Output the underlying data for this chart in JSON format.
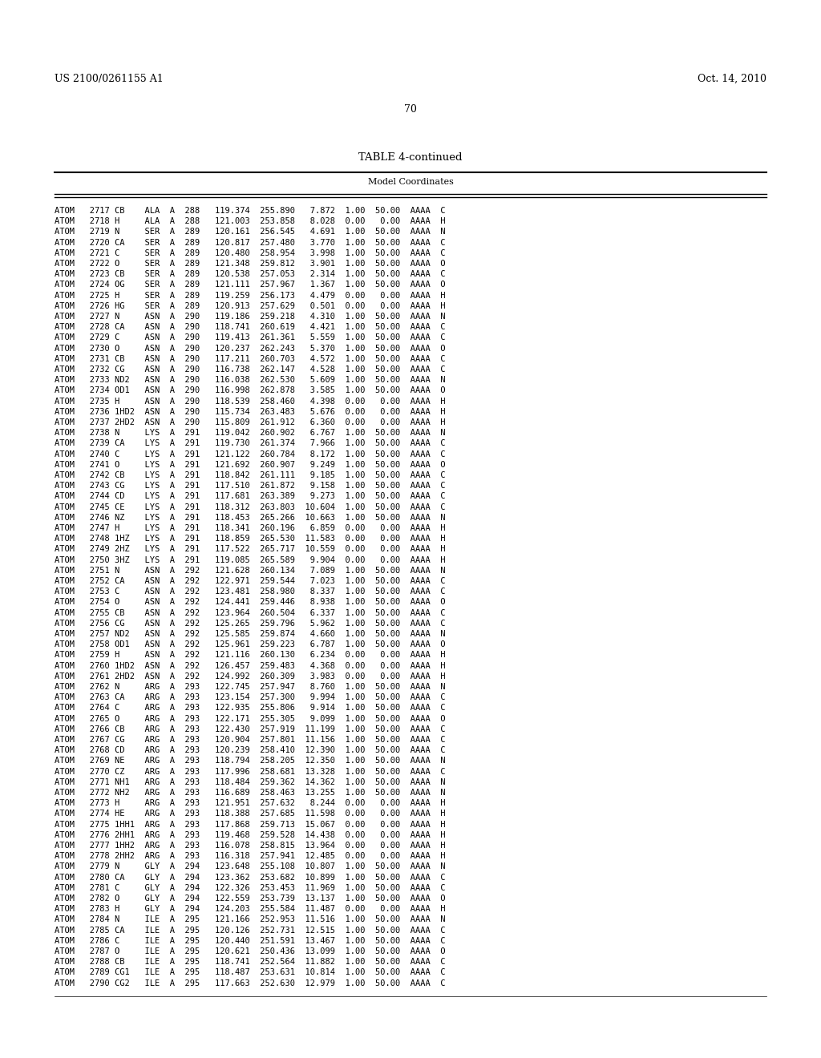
{
  "header_left": "US 2100/0261155 A1",
  "header_right": "Oct. 14, 2010",
  "page_number": "70",
  "table_title": "TABLE 4-continued",
  "table_subtitle": "Model Coordinates",
  "rows": [
    "ATOM   2717 CB    ALA  A  288  119.374  255.890   7.872  1.00  50.00  AAAA  C",
    "ATOM   2718 H     ALA  A  288  121.003  253.858   8.028  0.00   0.00  AAAA  H",
    "ATOM   2719 N     SER  A  289  120.161  256.545   4.691  1.00  50.00  AAAA  N",
    "ATOM   2720 CA    SER  A  289  120.817  257.480   3.770  1.00  50.00  AAAA  C",
    "ATOM   2721 C     SER  A  289  120.480  258.954   3.998  1.00  50.00  AAAA  C",
    "ATOM   2722 O     SER  A  289  121.348  259.812   3.901  1.00  50.00  AAAA  O",
    "ATOM   2723 CB    SER  A  289  120.538  257.053   2.314  1.00  50.00  AAAA  C",
    "ATOM   2724 OG    SER  A  289  121.111  257.967   1.367  1.00  50.00  AAAA  O",
    "ATOM   2725 H     SER  A  289  119.259  256.173   4.479  0.00   0.00  AAAA  H",
    "ATOM   2726 HG    SER  A  289  120.913  257.629   0.501  0.00   0.00  AAAA  H",
    "ATOM   2727 N     ASN  A  290  119.186  259.218   4.310  1.00  50.00  AAAA  N",
    "ATOM   2728 CA    ASN  A  290  118.741  260.619   4.421  1.00  50.00  AAAA  C",
    "ATOM   2729 C     ASN  A  290  119.413  261.361   5.559  1.00  50.00  AAAA  C",
    "ATOM   2730 O     ASN  A  290  120.237  262.243   5.370  1.00  50.00  AAAA  O",
    "ATOM   2731 CB    ASN  A  290  117.211  260.703   4.572  1.00  50.00  AAAA  C",
    "ATOM   2732 CG    ASN  A  290  116.738  262.147   4.528  1.00  50.00  AAAA  C",
    "ATOM   2733 ND2   ASN  A  290  116.038  262.530   5.609  1.00  50.00  AAAA  N",
    "ATOM   2734 OD1   ASN  A  290  116.998  262.878   3.585  1.00  50.00  AAAA  O",
    "ATOM   2735 H     ASN  A  290  118.539  258.460   4.398  0.00   0.00  AAAA  H",
    "ATOM   2736 1HD2  ASN  A  290  115.734  263.483   5.676  0.00   0.00  AAAA  H",
    "ATOM   2737 2HD2  ASN  A  290  115.809  261.912   6.360  0.00   0.00  AAAA  H",
    "ATOM   2738 N     LYS  A  291  119.042  260.902   6.767  1.00  50.00  AAAA  N",
    "ATOM   2739 CA    LYS  A  291  119.730  261.374   7.966  1.00  50.00  AAAA  C",
    "ATOM   2740 C     LYS  A  291  121.122  260.784   8.172  1.00  50.00  AAAA  C",
    "ATOM   2741 O     LYS  A  291  121.692  260.907   9.249  1.00  50.00  AAAA  O",
    "ATOM   2742 CB    LYS  A  291  118.842  261.111   9.185  1.00  50.00  AAAA  C",
    "ATOM   2743 CG    LYS  A  291  117.510  261.872   9.158  1.00  50.00  AAAA  C",
    "ATOM   2744 CD    LYS  A  291  117.681  263.389   9.273  1.00  50.00  AAAA  C",
    "ATOM   2745 CE    LYS  A  291  118.312  263.803  10.604  1.00  50.00  AAAA  C",
    "ATOM   2746 NZ    LYS  A  291  118.453  265.266  10.663  1.00  50.00  AAAA  N",
    "ATOM   2747 H     LYS  A  291  118.341  260.196   6.859  0.00   0.00  AAAA  H",
    "ATOM   2748 1HZ   LYS  A  291  118.859  265.530  11.583  0.00   0.00  AAAA  H",
    "ATOM   2749 2HZ   LYS  A  291  117.522  265.717  10.559  0.00   0.00  AAAA  H",
    "ATOM   2750 3HZ   LYS  A  291  119.085  265.589   9.904  0.00   0.00  AAAA  H",
    "ATOM   2751 N     ASN  A  292  121.628  260.134   7.089  1.00  50.00  AAAA  N",
    "ATOM   2752 CA    ASN  A  292  122.971  259.544   7.023  1.00  50.00  AAAA  C",
    "ATOM   2753 C     ASN  A  292  123.481  258.980   8.337  1.00  50.00  AAAA  C",
    "ATOM   2754 O     ASN  A  292  124.441  259.446   8.938  1.00  50.00  AAAA  O",
    "ATOM   2755 CB    ASN  A  292  123.964  260.504   6.337  1.00  50.00  AAAA  C",
    "ATOM   2756 CG    ASN  A  292  125.265  259.796   5.962  1.00  50.00  AAAA  C",
    "ATOM   2757 ND2   ASN  A  292  125.585  259.874   4.660  1.00  50.00  AAAA  N",
    "ATOM   2758 OD1   ASN  A  292  125.961  259.223   6.787  1.00  50.00  AAAA  O",
    "ATOM   2759 H     ASN  A  292  121.116  260.130   6.234  0.00   0.00  AAAA  H",
    "ATOM   2760 1HD2  ASN  A  292  126.457  259.483   4.368  0.00   0.00  AAAA  H",
    "ATOM   2761 2HD2  ASN  A  292  124.992  260.309   3.983  0.00   0.00  AAAA  H",
    "ATOM   2762 N     ARG  A  293  122.745  257.947   8.760  1.00  50.00  AAAA  N",
    "ATOM   2763 CA    ARG  A  293  123.154  257.300   9.994  1.00  50.00  AAAA  C",
    "ATOM   2764 C     ARG  A  293  122.935  255.806   9.914  1.00  50.00  AAAA  C",
    "ATOM   2765 O     ARG  A  293  122.171  255.305   9.099  1.00  50.00  AAAA  O",
    "ATOM   2766 CB    ARG  A  293  122.430  257.919  11.199  1.00  50.00  AAAA  C",
    "ATOM   2767 CG    ARG  A  293  120.904  257.801  11.156  1.00  50.00  AAAA  C",
    "ATOM   2768 CD    ARG  A  293  120.239  258.410  12.390  1.00  50.00  AAAA  C",
    "ATOM   2769 NE    ARG  A  293  118.794  258.205  12.350  1.00  50.00  AAAA  N",
    "ATOM   2770 CZ    ARG  A  293  117.996  258.681  13.328  1.00  50.00  AAAA  C",
    "ATOM   2771 NH1   ARG  A  293  118.484  259.362  14.362  1.00  50.00  AAAA  N",
    "ATOM   2772 NH2   ARG  A  293  116.689  258.463  13.255  1.00  50.00  AAAA  N",
    "ATOM   2773 H     ARG  A  293  121.951  257.632   8.244  0.00   0.00  AAAA  H",
    "ATOM   2774 HE    ARG  A  293  118.388  257.685  11.598  0.00   0.00  AAAA  H",
    "ATOM   2775 1HH1  ARG  A  293  117.868  259.713  15.067  0.00   0.00  AAAA  H",
    "ATOM   2776 2HH1  ARG  A  293  119.468  259.528  14.438  0.00   0.00  AAAA  H",
    "ATOM   2777 1HH2  ARG  A  293  116.078  258.815  13.964  0.00   0.00  AAAA  H",
    "ATOM   2778 2HH2  ARG  A  293  116.318  257.941  12.485  0.00   0.00  AAAA  H",
    "ATOM   2779 N     GLY  A  294  123.648  255.108  10.807  1.00  50.00  AAAA  N",
    "ATOM   2780 CA    GLY  A  294  123.362  253.682  10.899  1.00  50.00  AAAA  C",
    "ATOM   2781 C     GLY  A  294  122.326  253.453  11.969  1.00  50.00  AAAA  C",
    "ATOM   2782 O     GLY  A  294  122.559  253.739  13.137  1.00  50.00  AAAA  O",
    "ATOM   2783 H     GLY  A  294  124.203  255.584  11.487  0.00   0.00  AAAA  H",
    "ATOM   2784 N     ILE  A  295  121.166  252.953  11.516  1.00  50.00  AAAA  N",
    "ATOM   2785 CA    ILE  A  295  120.126  252.731  12.515  1.00  50.00  AAAA  C",
    "ATOM   2786 C     ILE  A  295  120.440  251.591  13.467  1.00  50.00  AAAA  C",
    "ATOM   2787 O     ILE  A  295  120.621  250.436  13.099  1.00  50.00  AAAA  O",
    "ATOM   2788 CB    ILE  A  295  118.741  252.564  11.882  1.00  50.00  AAAA  C",
    "ATOM   2789 CG1   ILE  A  295  118.487  253.631  10.814  1.00  50.00  AAAA  C",
    "ATOM   2790 CG2   ILE  A  295  117.663  252.630  12.979  1.00  50.00  AAAA  C"
  ],
  "background_color": "#ffffff",
  "text_color": "#000000",
  "font_size": 7.5,
  "header_font_size": 9.0,
  "title_font_size": 9.5
}
